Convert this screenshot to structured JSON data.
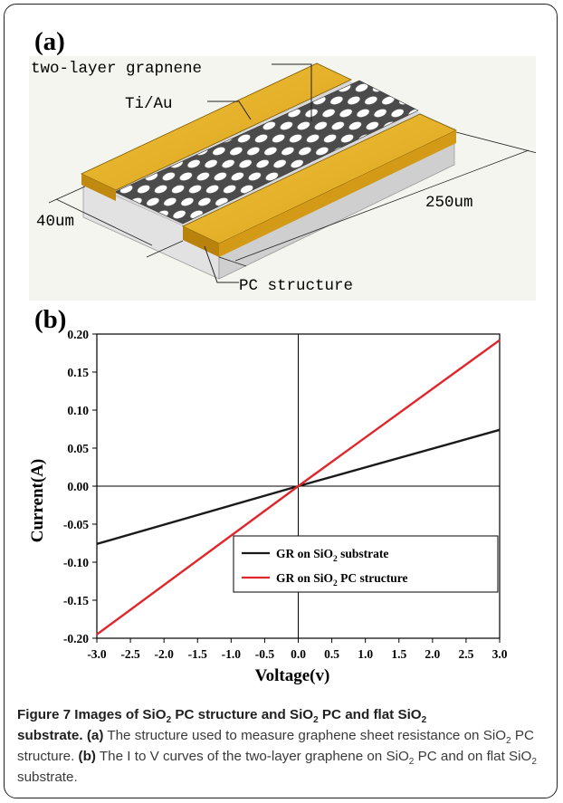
{
  "panel_a": {
    "label": "(a)",
    "labels": {
      "graphene": "two-layer grapnene",
      "electrode": "Ti/Au",
      "width": "40um",
      "length": "250um",
      "structure": "PC structure"
    }
  },
  "panel_b": {
    "label": "(b)"
  },
  "chart_data": {
    "type": "line",
    "xlabel": "Voltage(v)",
    "ylabel": "Current(A)",
    "xlim": [
      -3.0,
      3.0
    ],
    "ylim": [
      -0.2,
      0.2
    ],
    "xticks": [
      "-3.0",
      "-2.5",
      "-2.0",
      "-1.5",
      "-1.0",
      "-0.5",
      "0.0",
      "0.5",
      "1.0",
      "1.5",
      "2.0",
      "2.5",
      "3.0"
    ],
    "yticks": [
      "-0.20",
      "-0.15",
      "-0.10",
      "-0.05",
      "0.00",
      "0.05",
      "0.10",
      "0.15",
      "0.20"
    ],
    "legend_position": "bottom-right",
    "series": [
      {
        "name": "GR on SiO2 substrate",
        "legend_main": "GR on SiO",
        "legend_sub": "2",
        "legend_rest": " substrate",
        "color": "#1a1a1a",
        "x": [
          -3.0,
          0.0,
          3.0
        ],
        "y": [
          -0.076,
          0.0,
          0.074
        ]
      },
      {
        "name": "GR on SiO2 PC structure",
        "legend_main": "GR on SiO",
        "legend_sub": "2",
        "legend_rest": " PC  structure",
        "color": "#e0262b",
        "x": [
          -3.0,
          0.0,
          3.0
        ],
        "y": [
          -0.195,
          0.0,
          0.192
        ]
      }
    ]
  },
  "caption": {
    "fig": "Figure 7",
    "title_1": " Images of SiO",
    "title_2": " PC structure and SiO",
    "title_3": " PC and flat SiO",
    "title_4": "substrate.",
    "sub": "2",
    "a_tag": "(a)",
    "a_text_1": " The structure used to measure graphene sheet resistance on SiO",
    "a_text_2": " PC structure.",
    "b_tag": "(b)",
    "b_text_1": " The I to V curves of the two-layer graphene on SiO",
    "b_text_2": " PC and on flat SiO",
    "b_text_3": " substrate."
  }
}
